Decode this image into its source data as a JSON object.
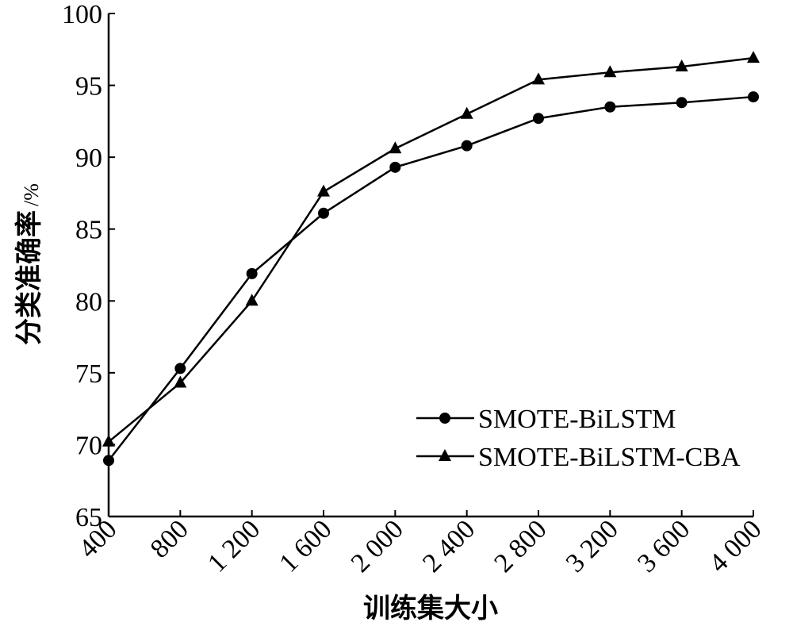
{
  "chart_data": {
    "type": "line",
    "title": "",
    "xlabel": "训练集大小",
    "ylabel": "分类准确率",
    "ylabel_unit": "/%",
    "categories": [
      "400",
      "800",
      "1 200",
      "1 600",
      "2 000",
      "2 400",
      "2 800",
      "3 200",
      "3 600",
      "4 000"
    ],
    "ylim": [
      65,
      100
    ],
    "yticks": [
      "65",
      "70",
      "75",
      "80",
      "85",
      "90",
      "95",
      "100"
    ],
    "grid": false,
    "legend_position": "bottom-right",
    "series": [
      {
        "name": "SMOTE-BiLSTM",
        "marker": "circle",
        "values": [
          68.9,
          75.3,
          81.9,
          86.1,
          89.3,
          90.8,
          92.7,
          93.5,
          93.8,
          94.2
        ]
      },
      {
        "name": "SMOTE-BiLSTM-CBA",
        "marker": "triangle",
        "values": [
          70.2,
          74.3,
          80.0,
          87.6,
          90.6,
          93.0,
          95.4,
          95.9,
          96.3,
          96.9
        ]
      }
    ],
    "colors": {
      "line": "#000000",
      "marker": "#000000"
    }
  }
}
